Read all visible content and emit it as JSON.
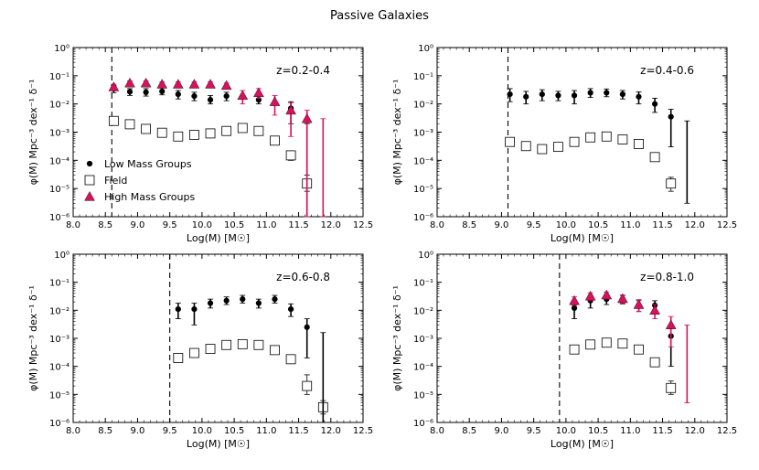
{
  "figure": {
    "title": "Passive Galaxies"
  },
  "colors": {
    "low": "#000000",
    "field": "#000000",
    "high": "#d6125c"
  },
  "chart_data": [
    {
      "type": "scatter",
      "panel": "top-left",
      "annotation": "z=0.2-0.4",
      "xlabel": "Log(M) [M☉]",
      "ylabel": "φ(M) Mpc⁻³ dex⁻¹ δ⁻¹",
      "xlim": [
        8.0,
        12.5
      ],
      "ylim": [
        1e-06,
        1
      ],
      "yscale": "log",
      "xticks": [
        "8.0",
        "8.5",
        "9.0",
        "9.5",
        "10.0",
        "10.5",
        "11.0",
        "11.5",
        "12.0",
        "12.5"
      ],
      "yticks": [
        "10⁻⁶",
        "10⁻⁵",
        "10⁻⁴",
        "10⁻³",
        "10⁻²",
        "10⁻¹",
        "10⁰"
      ],
      "mass_limit": 8.6,
      "legend": {
        "placement": "lower-left",
        "entries": [
          "Low Mass Groups",
          "Field",
          "High Mass Groups"
        ]
      },
      "series": [
        {
          "name": "Low Mass Groups",
          "marker": "circle",
          "points": [
            {
              "x": 8.63,
              "y": 0.035,
              "lo": 0.025,
              "hi": 0.045
            },
            {
              "x": 8.88,
              "y": 0.027,
              "lo": 0.02,
              "hi": 0.035
            },
            {
              "x": 9.13,
              "y": 0.026,
              "lo": 0.019,
              "hi": 0.035
            },
            {
              "x": 9.38,
              "y": 0.028,
              "lo": 0.021,
              "hi": 0.037
            },
            {
              "x": 9.63,
              "y": 0.022,
              "lo": 0.015,
              "hi": 0.03
            },
            {
              "x": 9.88,
              "y": 0.019,
              "lo": 0.013,
              "hi": 0.026
            },
            {
              "x": 10.13,
              "y": 0.014,
              "lo": 0.01,
              "hi": 0.02
            },
            {
              "x": 10.38,
              "y": 0.019,
              "lo": 0.013,
              "hi": 0.026
            },
            {
              "x": 10.88,
              "y": 0.014,
              "lo": 0.01,
              "hi": 0.02
            },
            {
              "x": 11.38,
              "y": 0.007,
              "lo": 0.002,
              "hi": 0.012
            },
            {
              "x": 11.63,
              "y": null,
              "lo": 1e-06,
              "hi": 0.002
            }
          ]
        },
        {
          "name": "Field",
          "marker": "open-square",
          "points": [
            {
              "x": 8.63,
              "y": 0.0025,
              "lo": 0.0021,
              "hi": 0.003
            },
            {
              "x": 8.88,
              "y": 0.0019,
              "lo": 0.0016,
              "hi": 0.0023
            },
            {
              "x": 9.13,
              "y": 0.0013,
              "lo": 0.0011,
              "hi": 0.0016
            },
            {
              "x": 9.38,
              "y": 0.00095,
              "lo": 0.0008,
              "hi": 0.0011
            },
            {
              "x": 9.63,
              "y": 0.0007,
              "lo": 0.0006,
              "hi": 0.00085
            },
            {
              "x": 9.88,
              "y": 0.0008,
              "lo": 0.00068,
              "hi": 0.00095
            },
            {
              "x": 10.13,
              "y": 0.0009,
              "lo": 0.00076,
              "hi": 0.0011
            },
            {
              "x": 10.38,
              "y": 0.0011,
              "lo": 0.00093,
              "hi": 0.0013
            },
            {
              "x": 10.63,
              "y": 0.0014,
              "lo": 0.0012,
              "hi": 0.0017
            },
            {
              "x": 10.88,
              "y": 0.0011,
              "lo": 0.00093,
              "hi": 0.0013
            },
            {
              "x": 11.13,
              "y": 0.0005,
              "lo": 0.0004,
              "hi": 0.0006
            },
            {
              "x": 11.38,
              "y": 0.00015,
              "lo": 0.0001,
              "hi": 0.0002
            },
            {
              "x": 11.63,
              "y": 1.5e-05,
              "lo": 8e-06,
              "hi": 3e-05
            }
          ]
        },
        {
          "name": "High Mass Groups",
          "marker": "triangle",
          "points": [
            {
              "x": 8.63,
              "y": 0.04,
              "lo": 0.03,
              "hi": 0.05
            },
            {
              "x": 8.88,
              "y": 0.055,
              "lo": 0.045,
              "hi": 0.065
            },
            {
              "x": 9.13,
              "y": 0.055,
              "lo": 0.045,
              "hi": 0.065
            },
            {
              "x": 9.38,
              "y": 0.05,
              "lo": 0.04,
              "hi": 0.06
            },
            {
              "x": 9.63,
              "y": 0.05,
              "lo": 0.04,
              "hi": 0.06
            },
            {
              "x": 9.88,
              "y": 0.05,
              "lo": 0.04,
              "hi": 0.06
            },
            {
              "x": 10.13,
              "y": 0.05,
              "lo": 0.04,
              "hi": 0.06
            },
            {
              "x": 10.38,
              "y": 0.045,
              "lo": 0.035,
              "hi": 0.055
            },
            {
              "x": 10.63,
              "y": 0.02,
              "lo": 0.01,
              "hi": 0.03
            },
            {
              "x": 10.88,
              "y": 0.025,
              "lo": 0.016,
              "hi": 0.035
            },
            {
              "x": 11.13,
              "y": 0.012,
              "lo": 0.004,
              "hi": 0.02
            },
            {
              "x": 11.38,
              "y": 0.006,
              "lo": 0.0007,
              "hi": 0.011
            },
            {
              "x": 11.63,
              "y": 0.003,
              "lo": 1e-06,
              "hi": 0.006
            },
            {
              "x": 11.88,
              "y": null,
              "lo": 1e-06,
              "hi": 0.003
            }
          ]
        }
      ]
    },
    {
      "type": "scatter",
      "panel": "top-right",
      "annotation": "z=0.4-0.6",
      "xlabel": "Log(M) [M☉]",
      "ylabel": "φ(M) Mpc⁻³ dex⁻¹ δ⁻¹",
      "xlim": [
        8.0,
        12.5
      ],
      "ylim": [
        1e-06,
        1
      ],
      "yscale": "log",
      "xticks": [
        "8.0",
        "8.5",
        "9.0",
        "9.5",
        "10.0",
        "10.5",
        "11.0",
        "11.5",
        "12.0",
        "12.5"
      ],
      "yticks": [
        "10⁻⁶",
        "10⁻⁵",
        "10⁻⁴",
        "10⁻³",
        "10⁻²",
        "10⁻¹",
        "10⁰"
      ],
      "mass_limit": 9.1,
      "series": [
        {
          "name": "Low Mass Groups",
          "marker": "circle",
          "points": [
            {
              "x": 9.13,
              "y": 0.022,
              "lo": 0.012,
              "hi": 0.035
            },
            {
              "x": 9.38,
              "y": 0.018,
              "lo": 0.01,
              "hi": 0.028
            },
            {
              "x": 9.63,
              "y": 0.022,
              "lo": 0.013,
              "hi": 0.032
            },
            {
              "x": 9.88,
              "y": 0.02,
              "lo": 0.013,
              "hi": 0.028
            },
            {
              "x": 10.13,
              "y": 0.02,
              "lo": 0.01,
              "hi": 0.03
            },
            {
              "x": 10.38,
              "y": 0.025,
              "lo": 0.017,
              "hi": 0.035
            },
            {
              "x": 10.63,
              "y": 0.025,
              "lo": 0.018,
              "hi": 0.034
            },
            {
              "x": 10.88,
              "y": 0.022,
              "lo": 0.015,
              "hi": 0.03
            },
            {
              "x": 11.13,
              "y": 0.018,
              "lo": 0.01,
              "hi": 0.027
            },
            {
              "x": 11.38,
              "y": 0.01,
              "lo": 0.005,
              "hi": 0.016
            },
            {
              "x": 11.63,
              "y": 0.0035,
              "lo": 0.0003,
              "hi": 0.0065
            },
            {
              "x": 11.88,
              "y": null,
              "lo": 3e-06,
              "hi": 0.0025
            }
          ]
        },
        {
          "name": "Field",
          "marker": "open-square",
          "points": [
            {
              "x": 9.13,
              "y": 0.00045,
              "lo": 0.00038,
              "hi": 0.00053
            },
            {
              "x": 9.38,
              "y": 0.00032,
              "lo": 0.00027,
              "hi": 0.00038
            },
            {
              "x": 9.63,
              "y": 0.00025,
              "lo": 0.00021,
              "hi": 0.0003
            },
            {
              "x": 9.88,
              "y": 0.0003,
              "lo": 0.00025,
              "hi": 0.00036
            },
            {
              "x": 10.13,
              "y": 0.00045,
              "lo": 0.00038,
              "hi": 0.00053
            },
            {
              "x": 10.38,
              "y": 0.00065,
              "lo": 0.00055,
              "hi": 0.00077
            },
            {
              "x": 10.63,
              "y": 0.0007,
              "lo": 0.00059,
              "hi": 0.00083
            },
            {
              "x": 10.88,
              "y": 0.00055,
              "lo": 0.00046,
              "hi": 0.00065
            },
            {
              "x": 11.13,
              "y": 0.00038,
              "lo": 0.00032,
              "hi": 0.00045
            },
            {
              "x": 11.38,
              "y": 0.00013,
              "lo": 0.0001,
              "hi": 0.00017
            },
            {
              "x": 11.63,
              "y": 1.5e-05,
              "lo": 8e-06,
              "hi": 2.5e-05
            }
          ]
        }
      ]
    },
    {
      "type": "scatter",
      "panel": "bottom-left",
      "annotation": "z=0.6-0.8",
      "xlabel": "Log(M) [M☉]",
      "ylabel": "φ(M) Mpc⁻³ dex⁻¹ δ⁻¹",
      "xlim": [
        8.0,
        12.5
      ],
      "ylim": [
        1e-06,
        1
      ],
      "yscale": "log",
      "xticks": [
        "8.0",
        "8.5",
        "9.0",
        "9.5",
        "10.0",
        "10.5",
        "11.0",
        "11.5",
        "12.0",
        "12.5"
      ],
      "yticks": [
        "10⁻⁶",
        "10⁻⁵",
        "10⁻⁴",
        "10⁻³",
        "10⁻²",
        "10⁻¹",
        "10⁰"
      ],
      "mass_limit": 9.5,
      "series": [
        {
          "name": "Low Mass Groups",
          "marker": "circle",
          "points": [
            {
              "x": 9.63,
              "y": 0.011,
              "lo": 0.005,
              "hi": 0.018
            },
            {
              "x": 9.88,
              "y": 0.011,
              "lo": 0.003,
              "hi": 0.018
            },
            {
              "x": 10.13,
              "y": 0.018,
              "lo": 0.012,
              "hi": 0.025
            },
            {
              "x": 10.38,
              "y": 0.022,
              "lo": 0.016,
              "hi": 0.03
            },
            {
              "x": 10.63,
              "y": 0.025,
              "lo": 0.018,
              "hi": 0.034
            },
            {
              "x": 10.88,
              "y": 0.018,
              "lo": 0.012,
              "hi": 0.025
            },
            {
              "x": 11.13,
              "y": 0.025,
              "lo": 0.018,
              "hi": 0.034
            },
            {
              "x": 11.38,
              "y": 0.011,
              "lo": 0.006,
              "hi": 0.017
            },
            {
              "x": 11.63,
              "y": 0.0025,
              "lo": 0.0002,
              "hi": 0.005
            },
            {
              "x": 11.88,
              "y": null,
              "lo": 1e-06,
              "hi": 0.0016
            }
          ]
        },
        {
          "name": "Field",
          "marker": "open-square",
          "points": [
            {
              "x": 9.63,
              "y": 0.0002,
              "lo": 0.00016,
              "hi": 0.00025
            },
            {
              "x": 9.88,
              "y": 0.0003,
              "lo": 0.00025,
              "hi": 0.00036
            },
            {
              "x": 10.13,
              "y": 0.00042,
              "lo": 0.00035,
              "hi": 0.0005
            },
            {
              "x": 10.38,
              "y": 0.00058,
              "lo": 0.00049,
              "hi": 0.00069
            },
            {
              "x": 10.63,
              "y": 0.00062,
              "lo": 0.00052,
              "hi": 0.00073
            },
            {
              "x": 10.88,
              "y": 0.00058,
              "lo": 0.00049,
              "hi": 0.00069
            },
            {
              "x": 11.13,
              "y": 0.00038,
              "lo": 0.00031,
              "hi": 0.00046
            },
            {
              "x": 11.38,
              "y": 0.00018,
              "lo": 0.00014,
              "hi": 0.00023
            },
            {
              "x": 11.63,
              "y": 2e-05,
              "lo": 1e-05,
              "hi": 5e-05
            },
            {
              "x": 11.88,
              "y": 3.5e-06,
              "lo": 2e-06,
              "hi": 6e-06
            }
          ]
        }
      ]
    },
    {
      "type": "scatter",
      "panel": "bottom-right",
      "annotation": "z=0.8-1.0",
      "xlabel": "Log(M) [M☉]",
      "ylabel": "φ(M) Mpc⁻³ dex⁻¹ δ⁻¹",
      "xlim": [
        8.0,
        12.5
      ],
      "ylim": [
        1e-06,
        1
      ],
      "yscale": "log",
      "xticks": [
        "8.0",
        "8.5",
        "9.0",
        "9.5",
        "10.0",
        "10.5",
        "11.0",
        "11.5",
        "12.0",
        "12.5"
      ],
      "yticks": [
        "10⁻⁶",
        "10⁻⁵",
        "10⁻⁴",
        "10⁻³",
        "10⁻²",
        "10⁻¹",
        "10⁰"
      ],
      "mass_limit": 9.9,
      "series": [
        {
          "name": "Low Mass Groups",
          "marker": "circle",
          "points": [
            {
              "x": 10.13,
              "y": 0.012,
              "lo": 0.005,
              "hi": 0.02
            },
            {
              "x": 10.38,
              "y": 0.022,
              "lo": 0.012,
              "hi": 0.033
            },
            {
              "x": 10.63,
              "y": 0.025,
              "lo": 0.016,
              "hi": 0.035
            },
            {
              "x": 10.88,
              "y": 0.025,
              "lo": 0.017,
              "hi": 0.034
            },
            {
              "x": 11.13,
              "y": 0.015,
              "lo": 0.009,
              "hi": 0.022
            },
            {
              "x": 11.38,
              "y": 0.015,
              "lo": 0.009,
              "hi": 0.022
            },
            {
              "x": 11.63,
              "y": 0.0012,
              "lo": 0.0001,
              "hi": 0.003
            }
          ]
        },
        {
          "name": "Field",
          "marker": "open-square",
          "points": [
            {
              "x": 10.13,
              "y": 0.0004,
              "lo": 0.00034,
              "hi": 0.00047
            },
            {
              "x": 10.38,
              "y": 0.0006,
              "lo": 0.00051,
              "hi": 0.0007
            },
            {
              "x": 10.63,
              "y": 0.0007,
              "lo": 0.0006,
              "hi": 0.00082
            },
            {
              "x": 10.88,
              "y": 0.00065,
              "lo": 0.00055,
              "hi": 0.00076
            },
            {
              "x": 11.13,
              "y": 0.0004,
              "lo": 0.00034,
              "hi": 0.00047
            },
            {
              "x": 11.38,
              "y": 0.00014,
              "lo": 0.00011,
              "hi": 0.00018
            },
            {
              "x": 11.63,
              "y": 1.7e-05,
              "lo": 1e-05,
              "hi": 3e-05
            }
          ]
        },
        {
          "name": "High Mass Groups",
          "marker": "triangle",
          "points": [
            {
              "x": 10.13,
              "y": 0.022,
              "lo": 0.015,
              "hi": 0.03
            },
            {
              "x": 10.38,
              "y": 0.032,
              "lo": 0.022,
              "hi": 0.042
            },
            {
              "x": 10.63,
              "y": 0.035,
              "lo": 0.025,
              "hi": 0.045
            },
            {
              "x": 10.88,
              "y": 0.026,
              "lo": 0.018,
              "hi": 0.035
            },
            {
              "x": 11.13,
              "y": 0.016,
              "lo": 0.009,
              "hi": 0.024
            },
            {
              "x": 11.38,
              "y": 0.01,
              "lo": 0.005,
              "hi": 0.016
            },
            {
              "x": 11.63,
              "y": 0.003,
              "lo": 0.0005,
              "hi": 0.006
            },
            {
              "x": 11.88,
              "y": null,
              "lo": 5e-06,
              "hi": 0.003
            }
          ]
        }
      ]
    }
  ]
}
